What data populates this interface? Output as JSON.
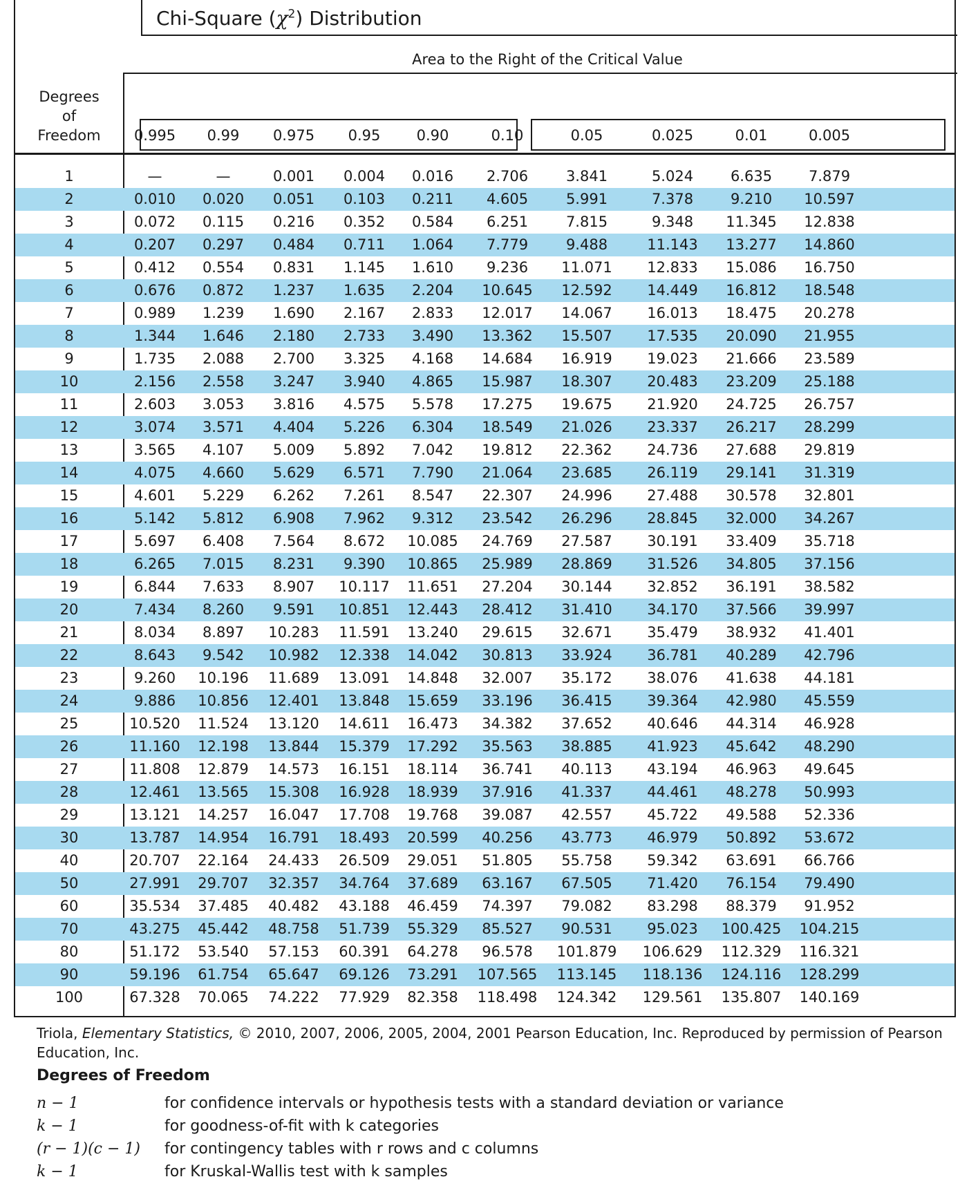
{
  "title": {
    "prefix": "Chi-Square (",
    "symbol": "χ",
    "exponent": "2",
    "suffix": ") Distribution"
  },
  "area_label": "Area to the Right of the Critical Value",
  "df_label_lines": [
    "Degrees",
    "of",
    "Freedom"
  ],
  "column_headers": [
    "0.995",
    "0.99",
    "0.975",
    "0.95",
    "0.90",
    "0.10",
    "0.05",
    "0.025",
    "0.01",
    "0.005"
  ],
  "rows": [
    {
      "df": "1",
      "values": [
        "—",
        "—",
        "0.001",
        "0.004",
        "0.016",
        "2.706",
        "3.841",
        "5.024",
        "6.635",
        "7.879"
      ]
    },
    {
      "df": "2",
      "values": [
        "0.010",
        "0.020",
        "0.051",
        "0.103",
        "0.211",
        "4.605",
        "5.991",
        "7.378",
        "9.210",
        "10.597"
      ]
    },
    {
      "df": "3",
      "values": [
        "0.072",
        "0.115",
        "0.216",
        "0.352",
        "0.584",
        "6.251",
        "7.815",
        "9.348",
        "11.345",
        "12.838"
      ]
    },
    {
      "df": "4",
      "values": [
        "0.207",
        "0.297",
        "0.484",
        "0.711",
        "1.064",
        "7.779",
        "9.488",
        "11.143",
        "13.277",
        "14.860"
      ]
    },
    {
      "df": "5",
      "values": [
        "0.412",
        "0.554",
        "0.831",
        "1.145",
        "1.610",
        "9.236",
        "11.071",
        "12.833",
        "15.086",
        "16.750"
      ]
    },
    {
      "df": "6",
      "values": [
        "0.676",
        "0.872",
        "1.237",
        "1.635",
        "2.204",
        "10.645",
        "12.592",
        "14.449",
        "16.812",
        "18.548"
      ]
    },
    {
      "df": "7",
      "values": [
        "0.989",
        "1.239",
        "1.690",
        "2.167",
        "2.833",
        "12.017",
        "14.067",
        "16.013",
        "18.475",
        "20.278"
      ]
    },
    {
      "df": "8",
      "values": [
        "1.344",
        "1.646",
        "2.180",
        "2.733",
        "3.490",
        "13.362",
        "15.507",
        "17.535",
        "20.090",
        "21.955"
      ]
    },
    {
      "df": "9",
      "values": [
        "1.735",
        "2.088",
        "2.700",
        "3.325",
        "4.168",
        "14.684",
        "16.919",
        "19.023",
        "21.666",
        "23.589"
      ]
    },
    {
      "df": "10",
      "values": [
        "2.156",
        "2.558",
        "3.247",
        "3.940",
        "4.865",
        "15.987",
        "18.307",
        "20.483",
        "23.209",
        "25.188"
      ]
    },
    {
      "df": "11",
      "values": [
        "2.603",
        "3.053",
        "3.816",
        "4.575",
        "5.578",
        "17.275",
        "19.675",
        "21.920",
        "24.725",
        "26.757"
      ]
    },
    {
      "df": "12",
      "values": [
        "3.074",
        "3.571",
        "4.404",
        "5.226",
        "6.304",
        "18.549",
        "21.026",
        "23.337",
        "26.217",
        "28.299"
      ]
    },
    {
      "df": "13",
      "values": [
        "3.565",
        "4.107",
        "5.009",
        "5.892",
        "7.042",
        "19.812",
        "22.362",
        "24.736",
        "27.688",
        "29.819"
      ]
    },
    {
      "df": "14",
      "values": [
        "4.075",
        "4.660",
        "5.629",
        "6.571",
        "7.790",
        "21.064",
        "23.685",
        "26.119",
        "29.141",
        "31.319"
      ]
    },
    {
      "df": "15",
      "values": [
        "4.601",
        "5.229",
        "6.262",
        "7.261",
        "8.547",
        "22.307",
        "24.996",
        "27.488",
        "30.578",
        "32.801"
      ]
    },
    {
      "df": "16",
      "values": [
        "5.142",
        "5.812",
        "6.908",
        "7.962",
        "9.312",
        "23.542",
        "26.296",
        "28.845",
        "32.000",
        "34.267"
      ]
    },
    {
      "df": "17",
      "values": [
        "5.697",
        "6.408",
        "7.564",
        "8.672",
        "10.085",
        "24.769",
        "27.587",
        "30.191",
        "33.409",
        "35.718"
      ]
    },
    {
      "df": "18",
      "values": [
        "6.265",
        "7.015",
        "8.231",
        "9.390",
        "10.865",
        "25.989",
        "28.869",
        "31.526",
        "34.805",
        "37.156"
      ]
    },
    {
      "df": "19",
      "values": [
        "6.844",
        "7.633",
        "8.907",
        "10.117",
        "11.651",
        "27.204",
        "30.144",
        "32.852",
        "36.191",
        "38.582"
      ]
    },
    {
      "df": "20",
      "values": [
        "7.434",
        "8.260",
        "9.591",
        "10.851",
        "12.443",
        "28.412",
        "31.410",
        "34.170",
        "37.566",
        "39.997"
      ]
    },
    {
      "df": "21",
      "values": [
        "8.034",
        "8.897",
        "10.283",
        "11.591",
        "13.240",
        "29.615",
        "32.671",
        "35.479",
        "38.932",
        "41.401"
      ]
    },
    {
      "df": "22",
      "values": [
        "8.643",
        "9.542",
        "10.982",
        "12.338",
        "14.042",
        "30.813",
        "33.924",
        "36.781",
        "40.289",
        "42.796"
      ]
    },
    {
      "df": "23",
      "values": [
        "9.260",
        "10.196",
        "11.689",
        "13.091",
        "14.848",
        "32.007",
        "35.172",
        "38.076",
        "41.638",
        "44.181"
      ]
    },
    {
      "df": "24",
      "values": [
        "9.886",
        "10.856",
        "12.401",
        "13.848",
        "15.659",
        "33.196",
        "36.415",
        "39.364",
        "42.980",
        "45.559"
      ]
    },
    {
      "df": "25",
      "values": [
        "10.520",
        "11.524",
        "13.120",
        "14.611",
        "16.473",
        "34.382",
        "37.652",
        "40.646",
        "44.314",
        "46.928"
      ]
    },
    {
      "df": "26",
      "values": [
        "11.160",
        "12.198",
        "13.844",
        "15.379",
        "17.292",
        "35.563",
        "38.885",
        "41.923",
        "45.642",
        "48.290"
      ]
    },
    {
      "df": "27",
      "values": [
        "11.808",
        "12.879",
        "14.573",
        "16.151",
        "18.114",
        "36.741",
        "40.113",
        "43.194",
        "46.963",
        "49.645"
      ]
    },
    {
      "df": "28",
      "values": [
        "12.461",
        "13.565",
        "15.308",
        "16.928",
        "18.939",
        "37.916",
        "41.337",
        "44.461",
        "48.278",
        "50.993"
      ]
    },
    {
      "df": "29",
      "values": [
        "13.121",
        "14.257",
        "16.047",
        "17.708",
        "19.768",
        "39.087",
        "42.557",
        "45.722",
        "49.588",
        "52.336"
      ]
    },
    {
      "df": "30",
      "values": [
        "13.787",
        "14.954",
        "16.791",
        "18.493",
        "20.599",
        "40.256",
        "43.773",
        "46.979",
        "50.892",
        "53.672"
      ]
    },
    {
      "df": "40",
      "values": [
        "20.707",
        "22.164",
        "24.433",
        "26.509",
        "29.051",
        "51.805",
        "55.758",
        "59.342",
        "63.691",
        "66.766"
      ]
    },
    {
      "df": "50",
      "values": [
        "27.991",
        "29.707",
        "32.357",
        "34.764",
        "37.689",
        "63.167",
        "67.505",
        "71.420",
        "76.154",
        "79.490"
      ]
    },
    {
      "df": "60",
      "values": [
        "35.534",
        "37.485",
        "40.482",
        "43.188",
        "46.459",
        "74.397",
        "79.082",
        "83.298",
        "88.379",
        "91.952"
      ]
    },
    {
      "df": "70",
      "values": [
        "43.275",
        "45.442",
        "48.758",
        "51.739",
        "55.329",
        "85.527",
        "90.531",
        "95.023",
        "100.425",
        "104.215"
      ]
    },
    {
      "df": "80",
      "values": [
        "51.172",
        "53.540",
        "57.153",
        "60.391",
        "64.278",
        "96.578",
        "101.879",
        "106.629",
        "112.329",
        "116.321"
      ]
    },
    {
      "df": "90",
      "values": [
        "59.196",
        "61.754",
        "65.647",
        "69.126",
        "73.291",
        "107.565",
        "113.145",
        "118.136",
        "124.116",
        "128.299"
      ]
    },
    {
      "df": "100",
      "values": [
        "67.328",
        "70.065",
        "74.222",
        "77.929",
        "82.358",
        "118.498",
        "124.342",
        "129.561",
        "135.807",
        "140.169"
      ]
    }
  ],
  "colors": {
    "row_shade": "#a8daf0",
    "rule": "#1a1a1a"
  },
  "footnote": {
    "author": "Triola, ",
    "book": "Elementary Statistics,",
    "rest": " © 2010, 2007, 2006, 2005, 2004, 2001 Pearson Education, Inc. Reproduced by permission of Pearson Education, Inc."
  },
  "df_heading": "Degrees of Freedom",
  "df_definitions": [
    {
      "symbol": "n − 1",
      "description": "for confidence intervals or hypothesis tests with a standard deviation or variance"
    },
    {
      "symbol": "k − 1",
      "description": "for goodness-of-fit with k categories"
    },
    {
      "symbol": "(r − 1)(c − 1)",
      "description": "for contingency tables with r rows and c columns"
    },
    {
      "symbol": "k − 1",
      "description": "for Kruskal-Wallis test with k samples"
    }
  ]
}
